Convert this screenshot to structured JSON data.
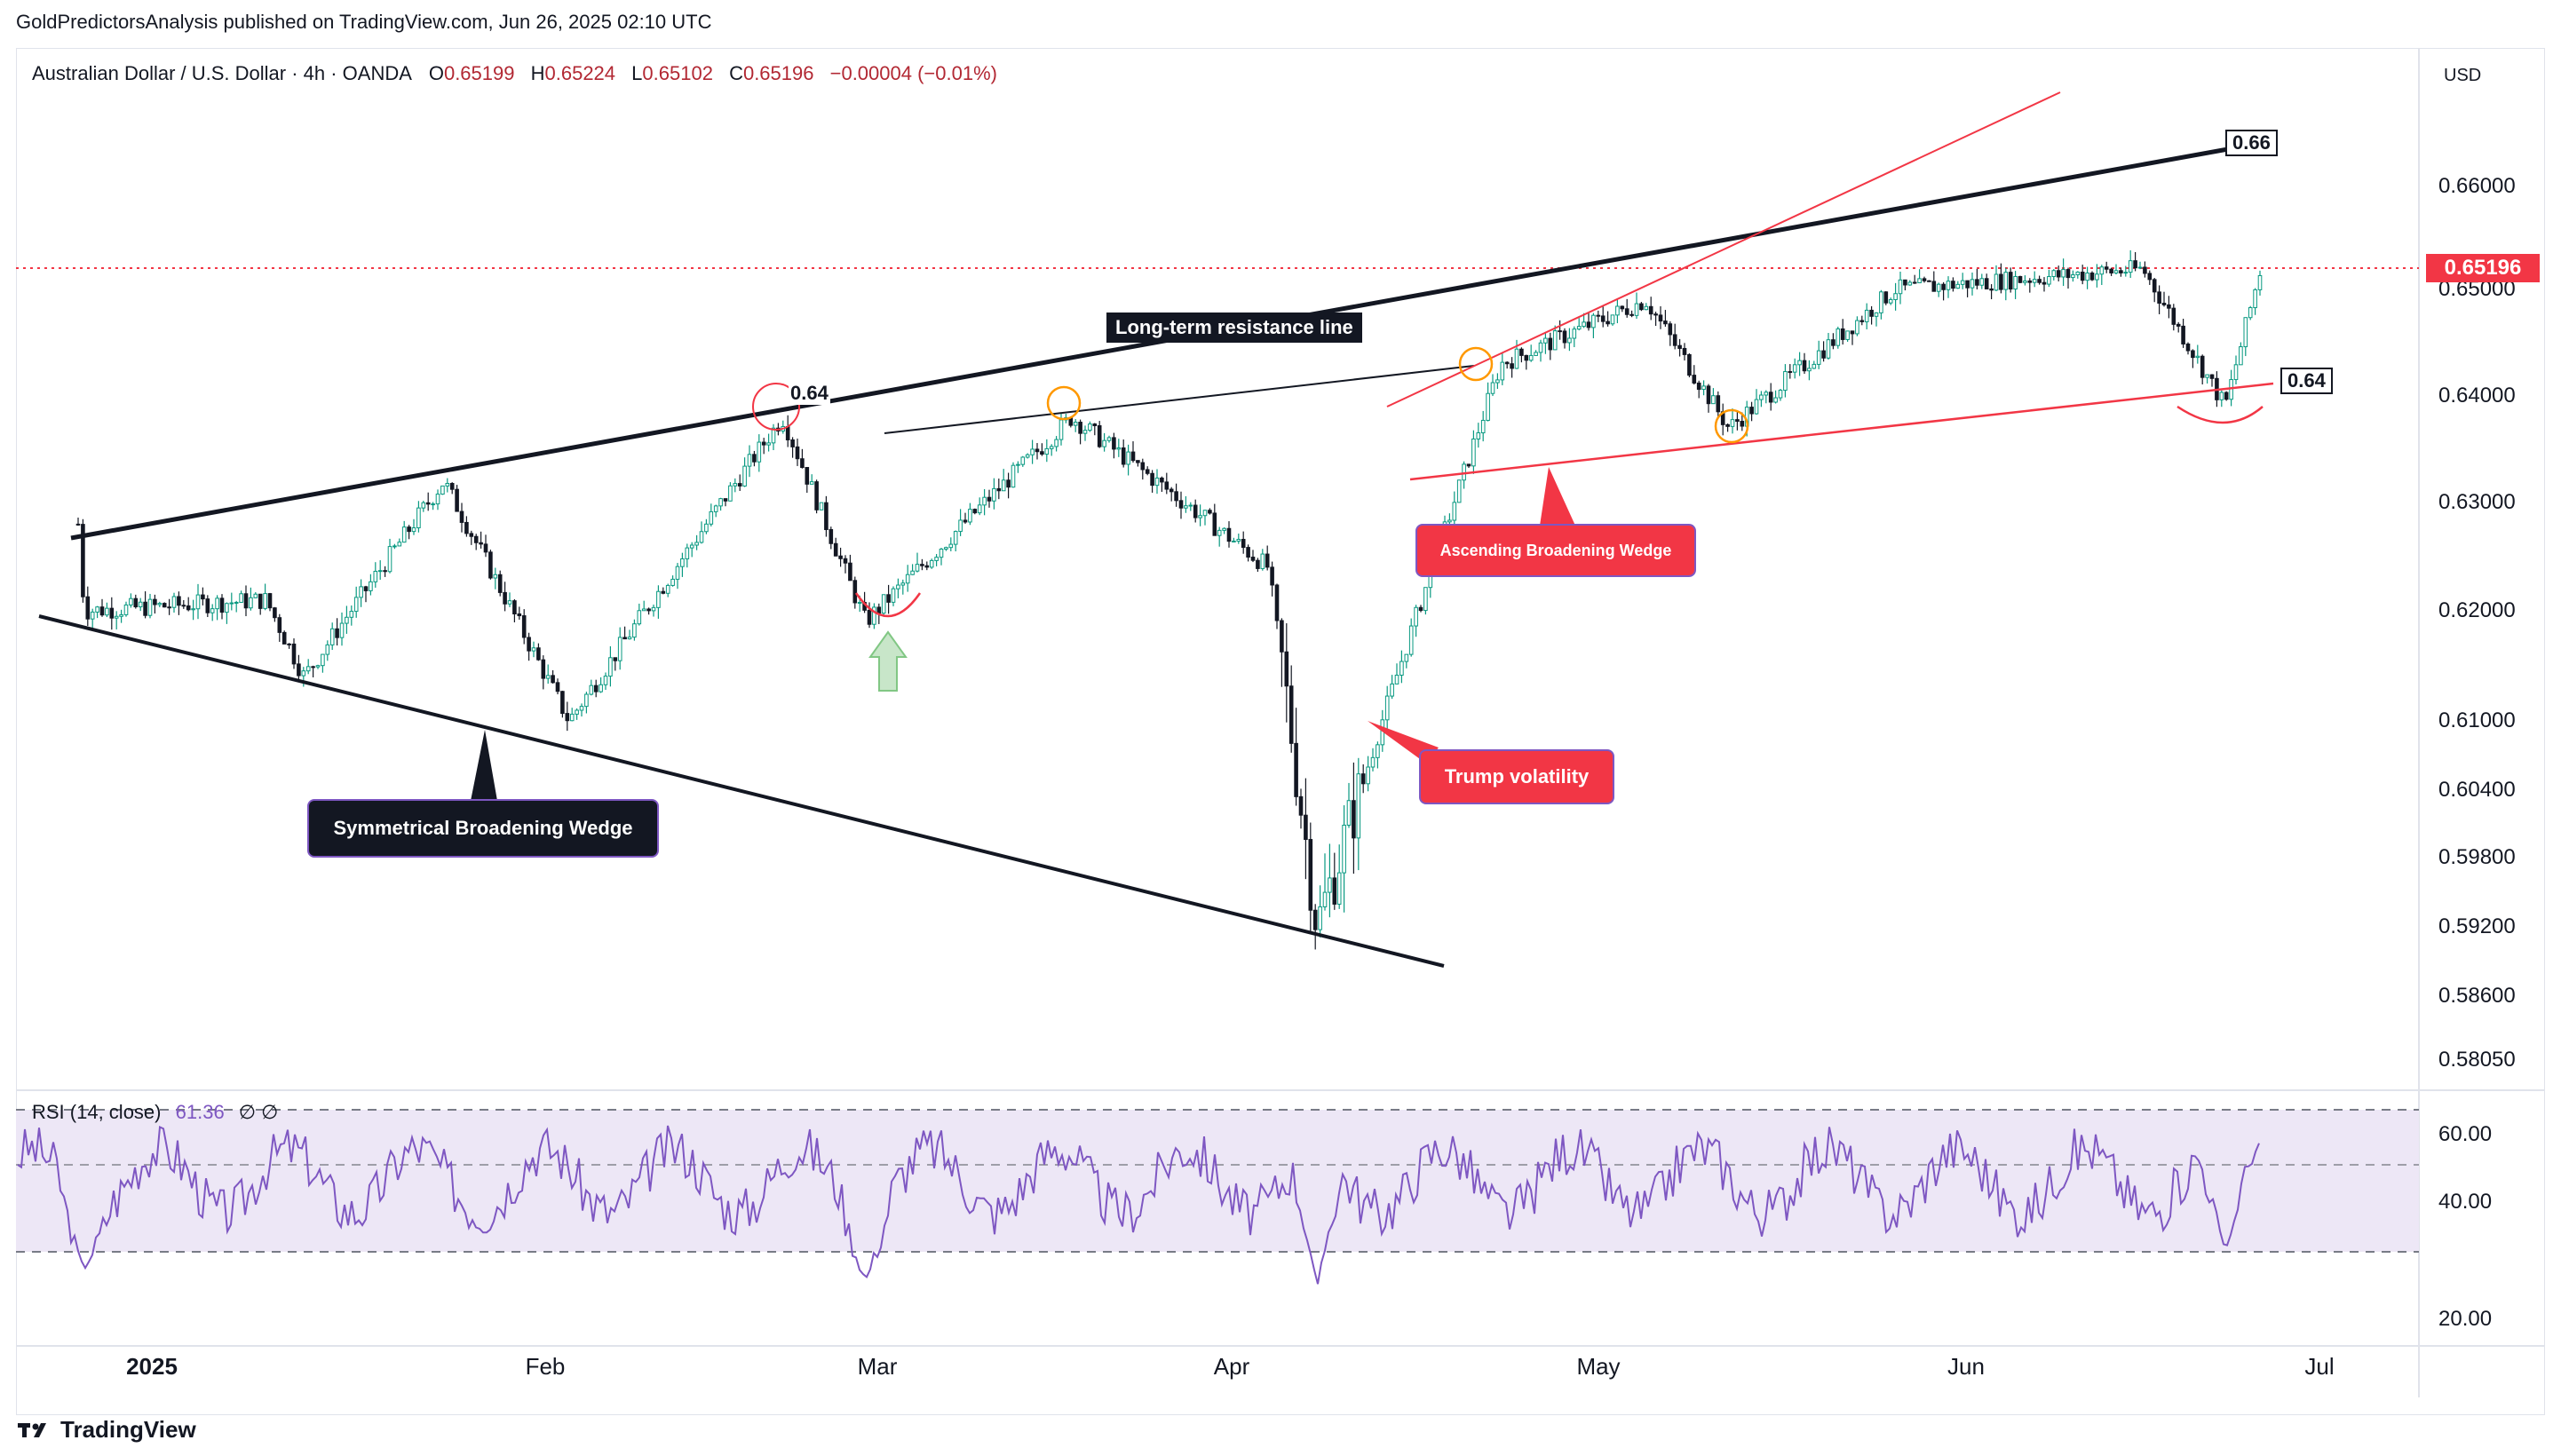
{
  "header": {
    "published": "GoldPredictorsAnalysis published on TradingView.com, Jun 26, 2025 02:10 UTC"
  },
  "legend": {
    "symbol": "Australian Dollar / U.S. Dollar · 4h · OANDA",
    "open_label": "O",
    "open": "0.65199",
    "high_label": "H",
    "high": "0.65224",
    "low_label": "L",
    "low": "0.65102",
    "close_label": "C",
    "close": "0.65196",
    "change": "−0.00004 (−0.01%)"
  },
  "currency": "USD",
  "last_price": "0.65196",
  "rsi_label": "RSI (14, close)",
  "rsi_value": "61.36",
  "rsi_extra": "∅ ∅",
  "footer": {
    "brand": "TradingView",
    "logo": "tradingview-logo"
  },
  "colors": {
    "accent_red": "#f23645",
    "black": "#131722",
    "rsi_line": "#7e57c2",
    "rsi_band": "#ede7f6",
    "orange": "#ff9800",
    "green": "#66bb6a"
  },
  "annotations": {
    "level_064_top": "0.64",
    "level_066": "0.66",
    "level_064_right": "0.64",
    "long_term": "Long-term resistance line",
    "ascending": "Ascending Broadening Wedge",
    "symmetrical": "Symmetrical Broadening Wedge",
    "trump": "Trump volatility"
  },
  "chart_data": [
    {
      "type": "candlestick",
      "title": "Australian Dollar / U.S. Dollar · 4h · OANDA",
      "x_ticks": [
        "2025",
        "Feb",
        "Mar",
        "Apr",
        "May",
        "Jun",
        "Jul"
      ],
      "y_ticks": [
        "0.66000",
        "0.65000",
        "0.64000",
        "0.63000",
        "0.62000",
        "0.61000",
        "0.60400",
        "0.59800",
        "0.59200",
        "0.58600",
        "0.58050"
      ],
      "anchors": [
        {
          "date": "Dec 19",
          "close": 0.628
        },
        {
          "date": "Dec 20",
          "close": 0.62
        },
        {
          "date": "Jan 10",
          "close": 0.621
        },
        {
          "date": "Jan 13",
          "close": 0.614
        },
        {
          "date": "Jan 24",
          "close": 0.632
        },
        {
          "date": "Feb 3",
          "close": 0.61
        },
        {
          "date": "Feb 21",
          "close": 0.638
        },
        {
          "date": "Feb 28",
          "close": 0.619
        },
        {
          "date": "Mar 18",
          "close": 0.638
        },
        {
          "date": "Apr 4",
          "close": 0.624
        },
        {
          "date": "Apr 8",
          "close": 0.592
        },
        {
          "date": "Apr 23",
          "close": 0.643
        },
        {
          "date": "May 5",
          "close": 0.649
        },
        {
          "date": "May 12",
          "close": 0.637
        },
        {
          "date": "May 26",
          "close": 0.65
        },
        {
          "date": "Jun 16",
          "close": 0.652
        },
        {
          "date": "Jun 23",
          "close": 0.639
        },
        {
          "date": "Jun 26",
          "close": 0.65196
        }
      ]
    },
    {
      "type": "line",
      "title": "RSI (14, close)",
      "y_ticks": [
        "60.00",
        "40.00",
        "20.00"
      ],
      "levels": [
        70,
        50,
        30
      ],
      "anchors": [
        {
          "date": "Dec 20",
          "value": 25
        },
        {
          "date": "Feb 28",
          "value": 22
        },
        {
          "date": "Apr 8",
          "value": 20
        },
        {
          "date": "Jun 23",
          "value": 30
        },
        {
          "date": "Jun 26",
          "value": 61.36
        }
      ]
    }
  ]
}
